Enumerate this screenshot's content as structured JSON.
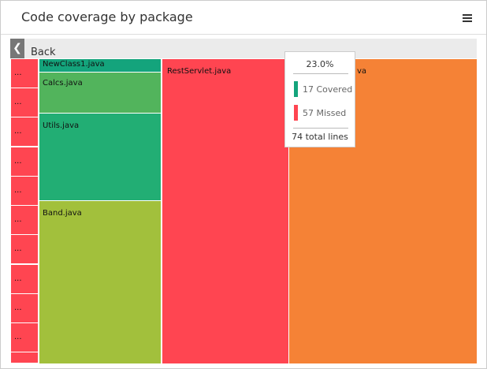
{
  "header": {
    "title": "Code coverage by package"
  },
  "navigation": {
    "back": "Back"
  },
  "tiles": [
    {
      "label": "..."
    },
    {
      "label": "..."
    },
    {
      "label": "..."
    },
    {
      "label": "..."
    },
    {
      "label": "..."
    },
    {
      "label": "..."
    },
    {
      "label": "..."
    },
    {
      "label": "..."
    },
    {
      "label": "..."
    },
    {
      "label": "..."
    },
    {
      "label": "NewClass1.java"
    },
    {
      "label": "Calcs.java"
    },
    {
      "label": "Utils.java"
    },
    {
      "label": "Band.java"
    },
    {
      "label": "RestServlet.java"
    },
    {
      "label": "va"
    }
  ],
  "tooltip": {
    "percent": "23.0%",
    "covered": "17 Covered",
    "missed": "57 Missed",
    "total": "74 total lines"
  }
}
